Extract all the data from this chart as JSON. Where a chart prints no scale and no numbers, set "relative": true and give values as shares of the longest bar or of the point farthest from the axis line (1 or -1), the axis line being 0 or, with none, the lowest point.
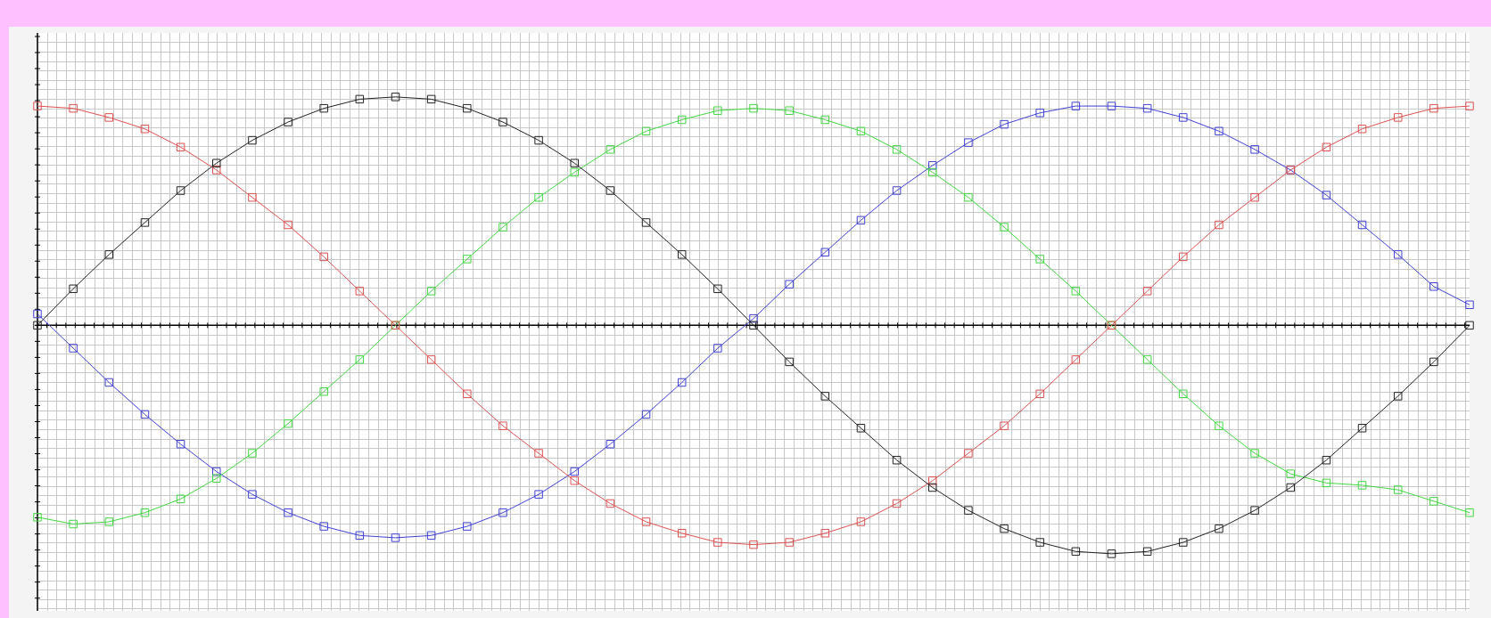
{
  "chart_data": {
    "type": "line",
    "relative": true,
    "grid": true,
    "legend": false,
    "marker": "square",
    "categories": [
      null,
      null,
      null,
      null,
      null,
      null,
      null,
      null,
      null,
      null,
      null,
      null,
      null,
      null,
      null,
      null,
      null,
      null,
      null,
      null,
      null,
      null,
      null,
      null,
      null,
      null,
      null,
      null,
      null,
      null,
      null,
      null,
      null,
      null,
      null,
      null,
      null,
      null,
      null,
      null,
      null
    ],
    "series": [
      {
        "color": "#222222",
        "values": [
          0,
          0.16,
          0.31,
          0.45,
          0.59,
          0.71,
          0.81,
          0.89,
          0.95,
          0.99,
          1,
          0.99,
          0.95,
          0.89,
          0.81,
          0.71,
          0.59,
          0.45,
          0.31,
          0.16,
          0,
          -0.16,
          -0.31,
          -0.45,
          -0.59,
          -0.71,
          -0.81,
          -0.89,
          -0.95,
          -0.99,
          -1,
          -0.99,
          -0.95,
          -0.89,
          -0.81,
          -0.71,
          -0.59,
          -0.45,
          -0.31,
          -0.16,
          0
        ]
      },
      {
        "color": "#e05050",
        "values": [
          0.96,
          0.95,
          0.91,
          0.86,
          0.78,
          0.68,
          0.56,
          0.44,
          0.3,
          0.15,
          0,
          -0.15,
          -0.3,
          -0.44,
          -0.56,
          -0.68,
          -0.78,
          -0.86,
          -0.91,
          -0.95,
          -0.96,
          -0.95,
          -0.91,
          -0.86,
          -0.78,
          -0.68,
          -0.56,
          -0.44,
          -0.3,
          -0.15,
          0,
          0.15,
          0.3,
          0.44,
          0.56,
          0.68,
          0.78,
          0.86,
          0.91,
          0.95,
          0.96
        ]
      },
      {
        "color": "#40d840",
        "values": [
          -0.84,
          -0.87,
          -0.86,
          -0.82,
          -0.76,
          -0.67,
          -0.56,
          -0.43,
          -0.29,
          -0.15,
          0,
          0.15,
          0.29,
          0.43,
          0.56,
          0.67,
          0.77,
          0.85,
          0.9,
          0.94,
          0.95,
          0.94,
          0.9,
          0.85,
          0.77,
          0.67,
          0.56,
          0.43,
          0.29,
          0.15,
          0,
          -0.15,
          -0.3,
          -0.44,
          -0.56,
          -0.65,
          -0.69,
          -0.7,
          -0.72,
          -0.77,
          -0.82
        ]
      },
      {
        "color": "#4040d8",
        "values": [
          0.05,
          -0.1,
          -0.25,
          -0.39,
          -0.52,
          -0.64,
          -0.74,
          -0.82,
          -0.88,
          -0.92,
          -0.93,
          -0.92,
          -0.88,
          -0.82,
          -0.74,
          -0.64,
          -0.52,
          -0.39,
          -0.25,
          -0.1,
          0.03,
          0.18,
          0.32,
          0.46,
          0.59,
          0.7,
          0.8,
          0.88,
          0.93,
          0.96,
          0.96,
          0.95,
          0.91,
          0.85,
          0.77,
          0.68,
          0.57,
          0.44,
          0.31,
          0.17,
          0.09
        ]
      }
    ]
  }
}
